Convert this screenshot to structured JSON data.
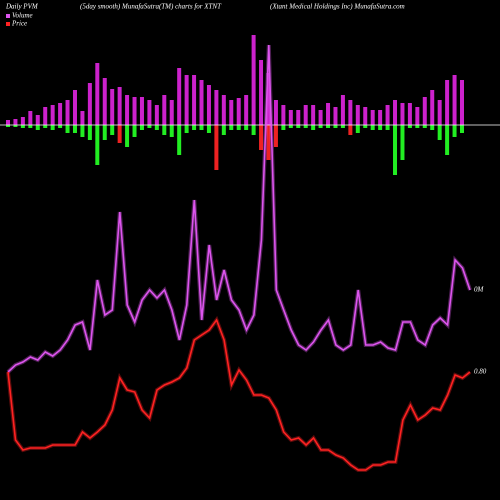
{
  "chart_data": {
    "type": "pvm",
    "title": "Daily PVM",
    "subtitle": "(5day smooth) MunafaSutra(TM) charts for XTNT",
    "source": "(Xtant Medical Holdings Inc) MunafaSutra.com",
    "bars_ylim": [
      -100,
      100
    ],
    "up_bars": {
      "color": "#cc22cc",
      "values": [
        5,
        6,
        8,
        14,
        10,
        18,
        20,
        22,
        25,
        35,
        14,
        42,
        62,
        47,
        36,
        38,
        30,
        28,
        28,
        25,
        20,
        30,
        25,
        57,
        50,
        50,
        45,
        40,
        35,
        30,
        25,
        27,
        30,
        90,
        65,
        52,
        25,
        20,
        15,
        15,
        20,
        20,
        15,
        22,
        18,
        30,
        25,
        20,
        18,
        15,
        15,
        20,
        25,
        22,
        22,
        18,
        28,
        35,
        25,
        45,
        50,
        45
      ]
    },
    "down_bars": {
      "values": [
        -2,
        -2,
        -3,
        -3,
        -5,
        -3,
        -5,
        -3,
        -8,
        -8,
        -12,
        -15,
        -40,
        -15,
        -10,
        -18,
        -22,
        -12,
        -5,
        -3,
        -5,
        -10,
        -12,
        -30,
        -8,
        -5,
        -5,
        -8,
        -45,
        -10,
        -5,
        -5,
        -5,
        -10,
        -25,
        -35,
        -22,
        -5,
        -3,
        -3,
        -3,
        -5,
        -3,
        -3,
        -3,
        -3,
        -10,
        -8,
        -3,
        -5,
        -5,
        -5,
        -50,
        -35,
        -3,
        -3,
        -3,
        -5,
        -15,
        -30,
        -12,
        -8
      ],
      "colors": [
        "#22ee22",
        "#22ee22",
        "#22ee22",
        "#22ee22",
        "#22ee22",
        "#22ee22",
        "#22ee22",
        "#22ee22",
        "#22ee22",
        "#22ee22",
        "#22ee22",
        "#22ee22",
        "#22ee22",
        "#22ee22",
        "#22ee22",
        "#ee2222",
        "#22ee22",
        "#22ee22",
        "#22ee22",
        "#22ee22",
        "#22ee22",
        "#22ee22",
        "#22ee22",
        "#22ee22",
        "#22ee22",
        "#22ee22",
        "#22ee22",
        "#22ee22",
        "#ee2222",
        "#22ee22",
        "#22ee22",
        "#22ee22",
        "#22ee22",
        "#22ee22",
        "#ee2222",
        "#ee2222",
        "#ee2222",
        "#22ee22",
        "#22ee22",
        "#22ee22",
        "#22ee22",
        "#22ee22",
        "#22ee22",
        "#22ee22",
        "#22ee22",
        "#22ee22",
        "#ee2222",
        "#22ee22",
        "#22ee22",
        "#22ee22",
        "#22ee22",
        "#22ee22",
        "#22ee22",
        "#22ee22",
        "#22ee22",
        "#22ee22",
        "#22ee22",
        "#22ee22",
        "#22ee22",
        "#22ee22",
        "#22ee22",
        "#22ee22"
      ]
    },
    "ylim": [
      0,
      500
    ],
    "series": [
      {
        "name": "Volume",
        "color": "#dd55ee",
        "label": "0M",
        "values": [
          128,
          135,
          138,
          143,
          140,
          148,
          144,
          150,
          160,
          175,
          178,
          150,
          220,
          185,
          190,
          288,
          195,
          178,
          200,
          210,
          202,
          210,
          190,
          160,
          195,
          300,
          180,
          255,
          200,
          230,
          200,
          190,
          170,
          185,
          260,
          455,
          210,
          190,
          170,
          155,
          150,
          158,
          170,
          180,
          155,
          150,
          155,
          210,
          155,
          155,
          158,
          152,
          150,
          178,
          178,
          160,
          155,
          175,
          182,
          175,
          240,
          232,
          210
        ]
      },
      {
        "name": "Price",
        "color": "#ff2222",
        "label": "0.80",
        "values": [
          128,
          60,
          50,
          52,
          52,
          52,
          55,
          55,
          55,
          55,
          68,
          62,
          68,
          75,
          90,
          122,
          110,
          108,
          90,
          82,
          110,
          115,
          118,
          122,
          132,
          160,
          165,
          170,
          180,
          160,
          115,
          130,
          120,
          105,
          105,
          102,
          90,
          68,
          60,
          62,
          55,
          62,
          50,
          50,
          45,
          42,
          35,
          30,
          30,
          35,
          35,
          38,
          38,
          80,
          95,
          80,
          85,
          92,
          90,
          105,
          125,
          122,
          128
        ]
      }
    ]
  }
}
